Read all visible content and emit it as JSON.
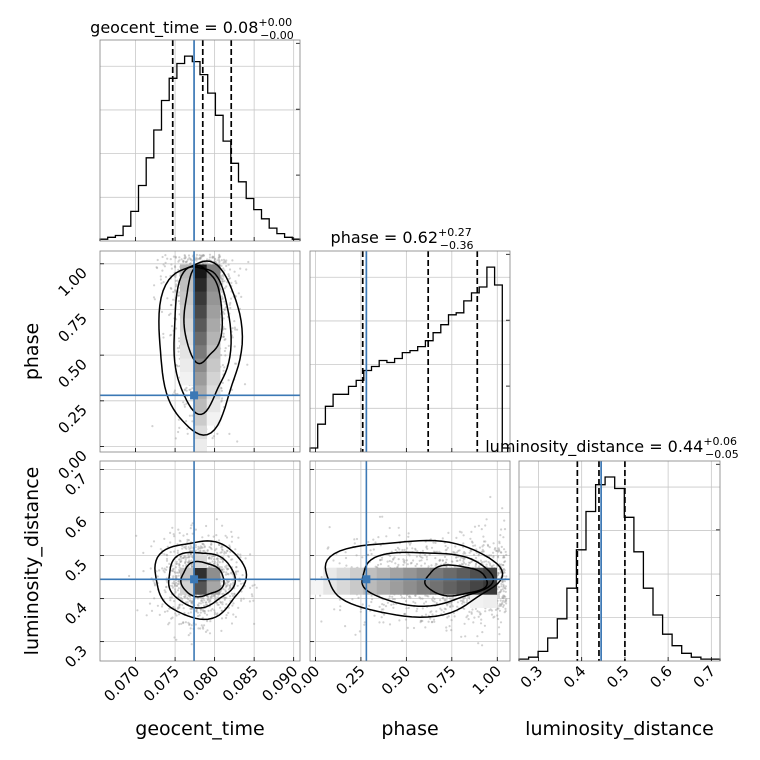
{
  "chart_data": {
    "type": "corner",
    "parameters": [
      "geocent_time",
      "phase",
      "luminosity_distance"
    ],
    "titles": [
      {
        "name": "geocent_time",
        "median": "0.08",
        "plus": "+0.00",
        "minus": "−0.00"
      },
      {
        "name": "phase",
        "median": "0.62",
        "plus": "+0.27",
        "minus": "−0.36"
      },
      {
        "name": "luminosity_distance",
        "median": "0.44",
        "plus": "+0.06",
        "minus": "−0.05"
      }
    ],
    "ranges": {
      "geocent_time": [
        0.0655,
        0.0908
      ],
      "phase": [
        -0.03,
        1.07
      ],
      "luminosity_distance": [
        0.255,
        0.72
      ]
    },
    "ticks": {
      "geocent_time": {
        "values": [
          0.07,
          0.075,
          0.08,
          0.085,
          0.09
        ],
        "labels": [
          "0.070",
          "0.075",
          "0.080",
          "0.085",
          "0.090"
        ]
      },
      "phase": {
        "values": [
          0.0,
          0.25,
          0.5,
          0.75,
          1.0
        ],
        "labels": [
          "0.00",
          "0.25",
          "0.50",
          "0.75",
          "1.00"
        ]
      },
      "luminosity_distance": {
        "values": [
          0.3,
          0.4,
          0.5,
          0.6,
          0.7
        ],
        "labels": [
          "0.3",
          "0.4",
          "0.5",
          "0.6",
          "0.7"
        ]
      }
    },
    "truths": {
      "geocent_time": 0.0774,
      "phase": 0.28,
      "luminosity_distance": 0.445
    },
    "quantiles": {
      "geocent_time": [
        0.0747,
        0.0785,
        0.0821
      ],
      "phase": [
        0.26,
        0.62,
        0.89
      ],
      "luminosity_distance": [
        0.39,
        0.44,
        0.5
      ]
    },
    "histograms": {
      "geocent_time": [
        1,
        2,
        3,
        8,
        16,
        30,
        45,
        60,
        76,
        88,
        96,
        100,
        97,
        90,
        80,
        68,
        54,
        42,
        32,
        23,
        17,
        12,
        7,
        4,
        2,
        1
      ],
      "phase": [
        2,
        14,
        23,
        29,
        29,
        33,
        36,
        41,
        43,
        46,
        45,
        47,
        50,
        51,
        53,
        56,
        60,
        64,
        69,
        70,
        76,
        80,
        83,
        93,
        84,
        2
      ],
      "luminosity_distance": [
        1,
        2,
        5,
        12,
        22,
        38,
        58,
        78,
        92,
        96,
        90,
        75,
        57,
        38,
        24,
        14,
        8,
        4,
        2,
        1,
        1
      ]
    },
    "grid": true,
    "truth_color": "#3b78b5"
  }
}
